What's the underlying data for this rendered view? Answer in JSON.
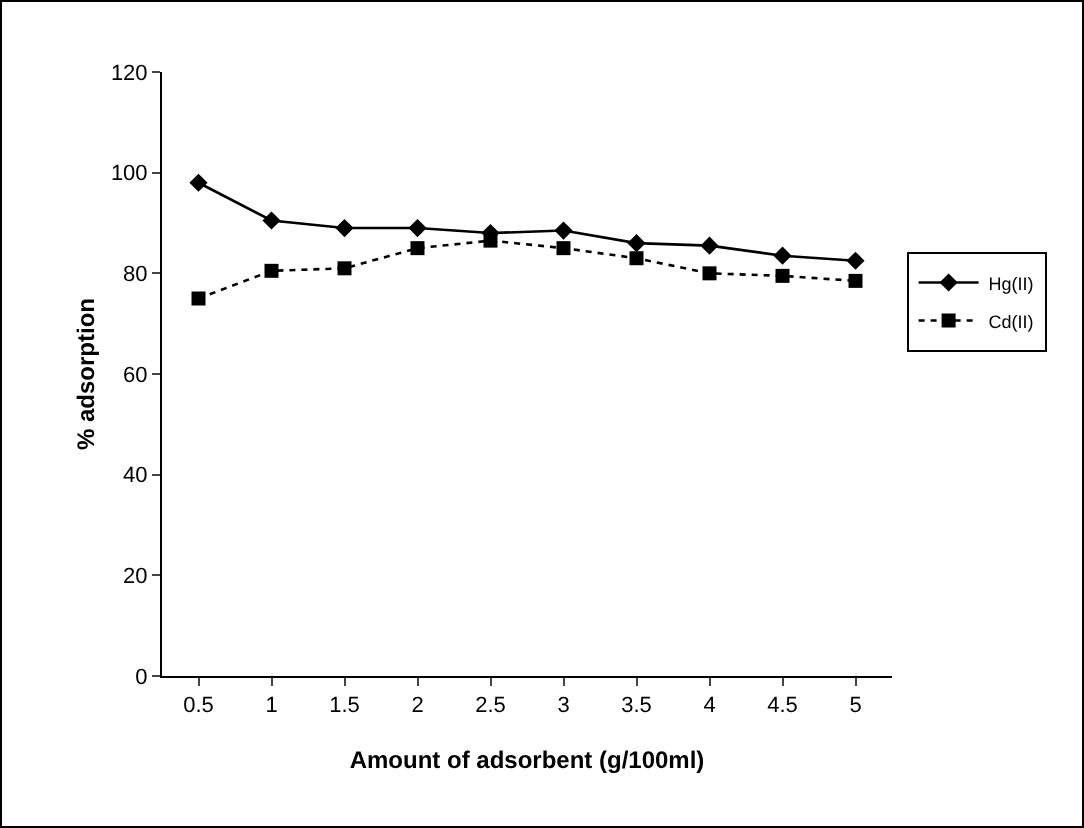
{
  "chart_data": {
    "type": "line",
    "xlabel": "Amount of adsorbent (g/100ml)",
    "ylabel": "% adsorption",
    "categories": [
      "0.5",
      "1",
      "1.5",
      "2",
      "2.5",
      "3",
      "3.5",
      "4",
      "4.5",
      "5"
    ],
    "series": [
      {
        "name": "Hg(II)",
        "color": "#000000",
        "marker": "diamond",
        "line_style": "solid",
        "values": [
          98,
          90.5,
          89,
          89,
          88,
          88.5,
          86,
          85.5,
          83.5,
          82.5
        ]
      },
      {
        "name": "Cd(II)",
        "color": "#000000",
        "marker": "square",
        "line_style": "dotted",
        "values": [
          75,
          80.5,
          81,
          85,
          86.5,
          85,
          83,
          80,
          79.5,
          78.5
        ]
      }
    ],
    "ylim": [
      0,
      120
    ],
    "yticks": [
      0,
      20,
      40,
      60,
      80,
      100,
      120
    ],
    "grid": false,
    "legend": "right"
  }
}
